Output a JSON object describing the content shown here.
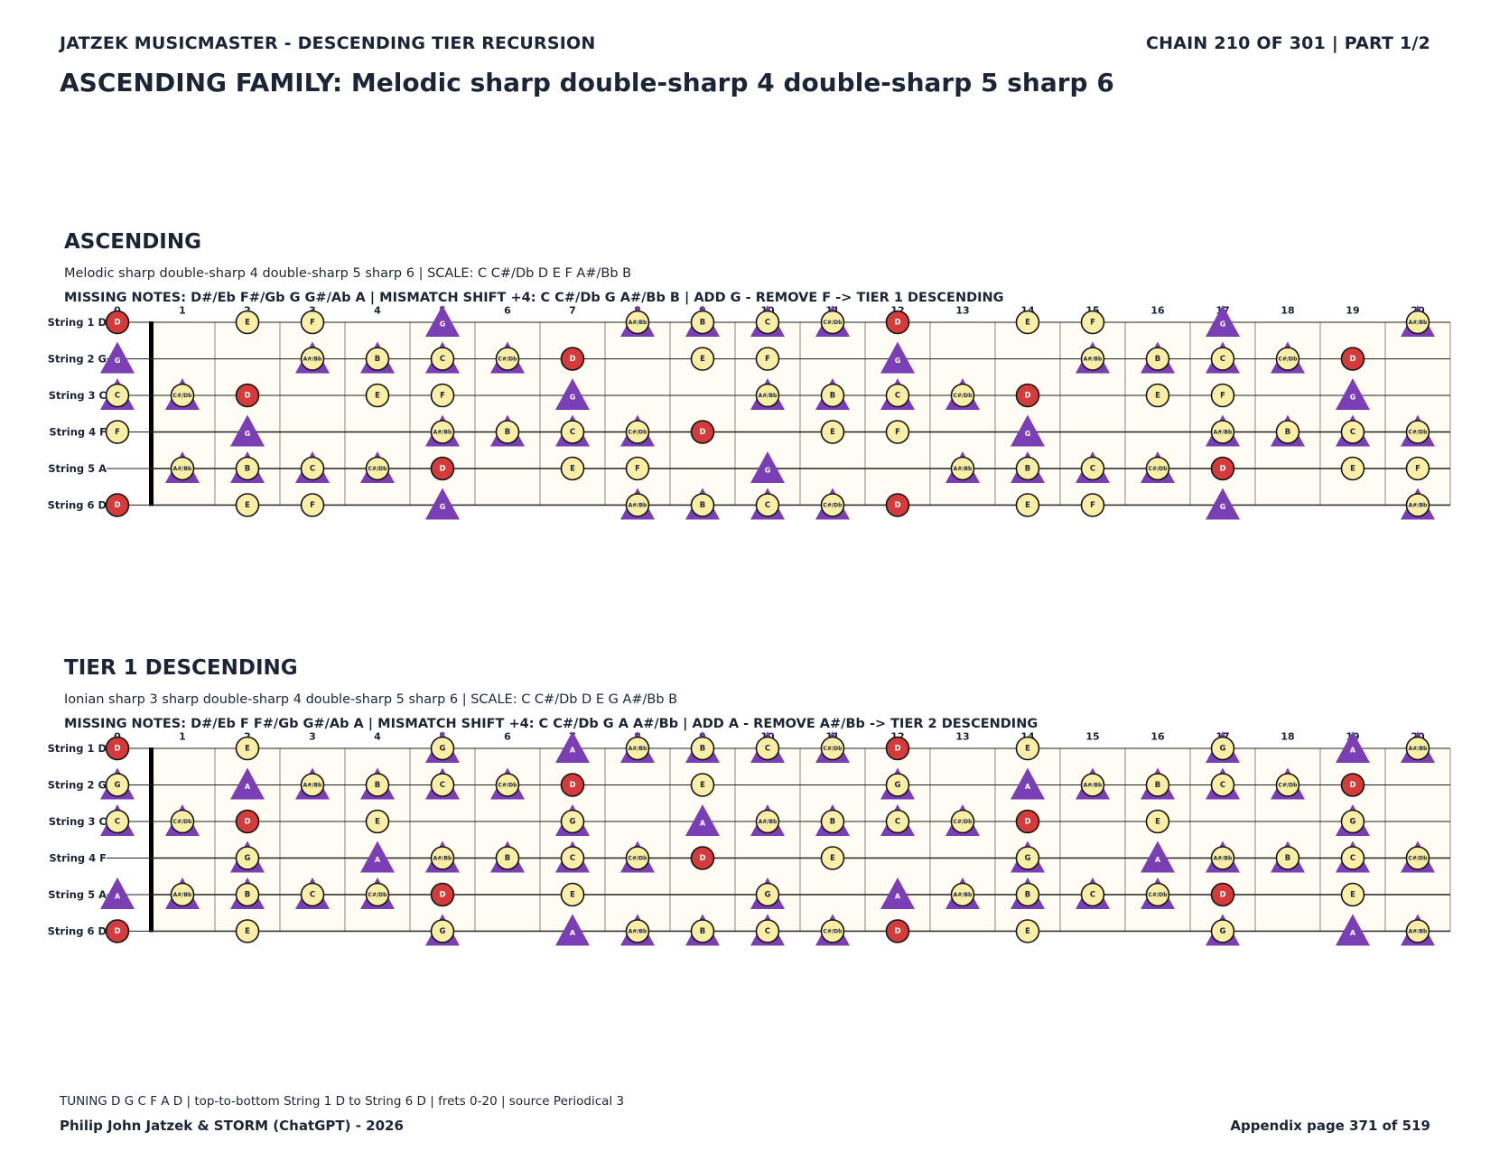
{
  "header": {
    "left": "JATZEK MUSICMASTER - DESCENDING TIER RECURSION",
    "right": "CHAIN 210 OF 301  |  PART 1/2"
  },
  "title": "ASCENDING FAMILY: Melodic sharp double-sharp 4 double-sharp 5 sharp 6",
  "sections": [
    {
      "heading": "ASCENDING",
      "subtitle": "Melodic sharp double-sharp 4 double-sharp 5 sharp 6  |  SCALE: C C#/Db D E F A#/Bb B",
      "missing": "MISSING NOTES: D#/Eb F#/Gb G G#/Ab A  |  MISMATCH SHIFT +4: C C#/Db G A#/Bb B  |  ADD G - REMOVE F -> TIER 1 DESCENDING",
      "scale": [
        "C",
        "C#/Db",
        "D",
        "E",
        "F",
        "A#/Bb",
        "B"
      ],
      "added": "G"
    },
    {
      "heading": "TIER 1 DESCENDING",
      "subtitle": "Ionian sharp 3 sharp double-sharp 4 double-sharp 5 sharp 6  |  SCALE: C C#/Db D E G A#/Bb B",
      "missing": "MISSING NOTES: D#/Eb F F#/Gb G#/Ab A  |  MISMATCH SHIFT +4: C C#/Db G A A#/Bb  |  ADD A - REMOVE A#/Bb -> TIER 2 DESCENDING",
      "scale": [
        "C",
        "C#/Db",
        "D",
        "E",
        "G",
        "A#/Bb",
        "B"
      ],
      "added": "A"
    }
  ],
  "fretboard": {
    "string_labels": [
      "String 1 D",
      "String 2 G",
      "String 3 C",
      "String 4 F",
      "String 5 A",
      "String 6 D"
    ],
    "open_notes": [
      "D",
      "G",
      "C",
      "F",
      "A",
      "D"
    ],
    "chromatic": [
      "C",
      "C#/Db",
      "D",
      "D#/Eb",
      "E",
      "F",
      "F#/Gb",
      "G",
      "G#/Ab",
      "A",
      "A#/Bb",
      "B"
    ],
    "fret_numbers": [
      "0",
      "1",
      "2",
      "3",
      "4",
      "5",
      "6",
      "7",
      "8",
      "9",
      "10",
      "11",
      "12",
      "13",
      "14",
      "15",
      "16",
      "17",
      "18",
      "19",
      "20"
    ],
    "root": "D",
    "triangle_notes": [
      "C",
      "C#/Db",
      "G",
      "A",
      "A#/Bb",
      "B"
    ],
    "colors": {
      "root": "#d63b3b",
      "note": "#fbefa8",
      "added": "#7b3fb5",
      "board": "#fffdf3"
    }
  },
  "footer": {
    "tuning": "TUNING D G C F A D | top-to-bottom String 1 D to String 6 D | frets 0-20 | source Periodical 3",
    "left": "Philip John Jatzek & STORM (ChatGPT) - 2026",
    "right": "Appendix page 371 of 519"
  }
}
